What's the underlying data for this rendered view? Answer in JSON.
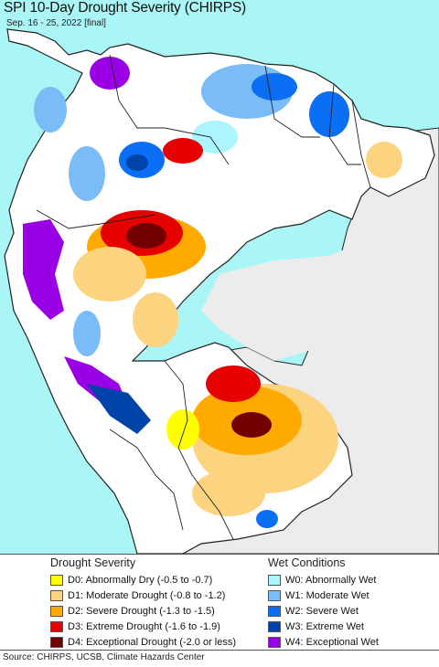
{
  "header": {
    "title": "SPI 10-Day Drought Severity (CHIRPS)",
    "subtitle": "Sep. 16 - 25, 2022 [final]"
  },
  "colors": {
    "ocean": "#aaf5f5",
    "land_outside": "#ececec",
    "land_neutral": "#ffffff",
    "border": "#222222"
  },
  "legend": {
    "drought": {
      "heading": "Drought Severity",
      "items": [
        {
          "label": "D0: Abnormally Dry (-0.5 to -0.7)",
          "color": "#ffff00"
        },
        {
          "label": "D1: Moderate Drought (-0.8 to -1.2)",
          "color": "#fcd37f"
        },
        {
          "label": "D2: Severe Drought (-1.3 to -1.5)",
          "color": "#ffaa00"
        },
        {
          "label": "D3: Extreme Drought (-1.6 to -1.9)",
          "color": "#e60000"
        },
        {
          "label": "D4: Exceptional Drought (-2.0 or less)",
          "color": "#730000"
        }
      ]
    },
    "wet": {
      "heading": "Wet Conditions",
      "items": [
        {
          "label": "W0: Abnormally Wet",
          "color": "#aaf5ff"
        },
        {
          "label": "W1: Moderate Wet",
          "color": "#7abcf7"
        },
        {
          "label": "W2: Severe Wet",
          "color": "#0a6ff5"
        },
        {
          "label": "W3: Extreme Wet",
          "color": "#0044aa"
        },
        {
          "label": "W4: Exceptional Wet",
          "color": "#9900e6"
        }
      ]
    }
  },
  "footer": {
    "source": "Source: CHIRPS, UCSB, Climate Hazards Center"
  }
}
